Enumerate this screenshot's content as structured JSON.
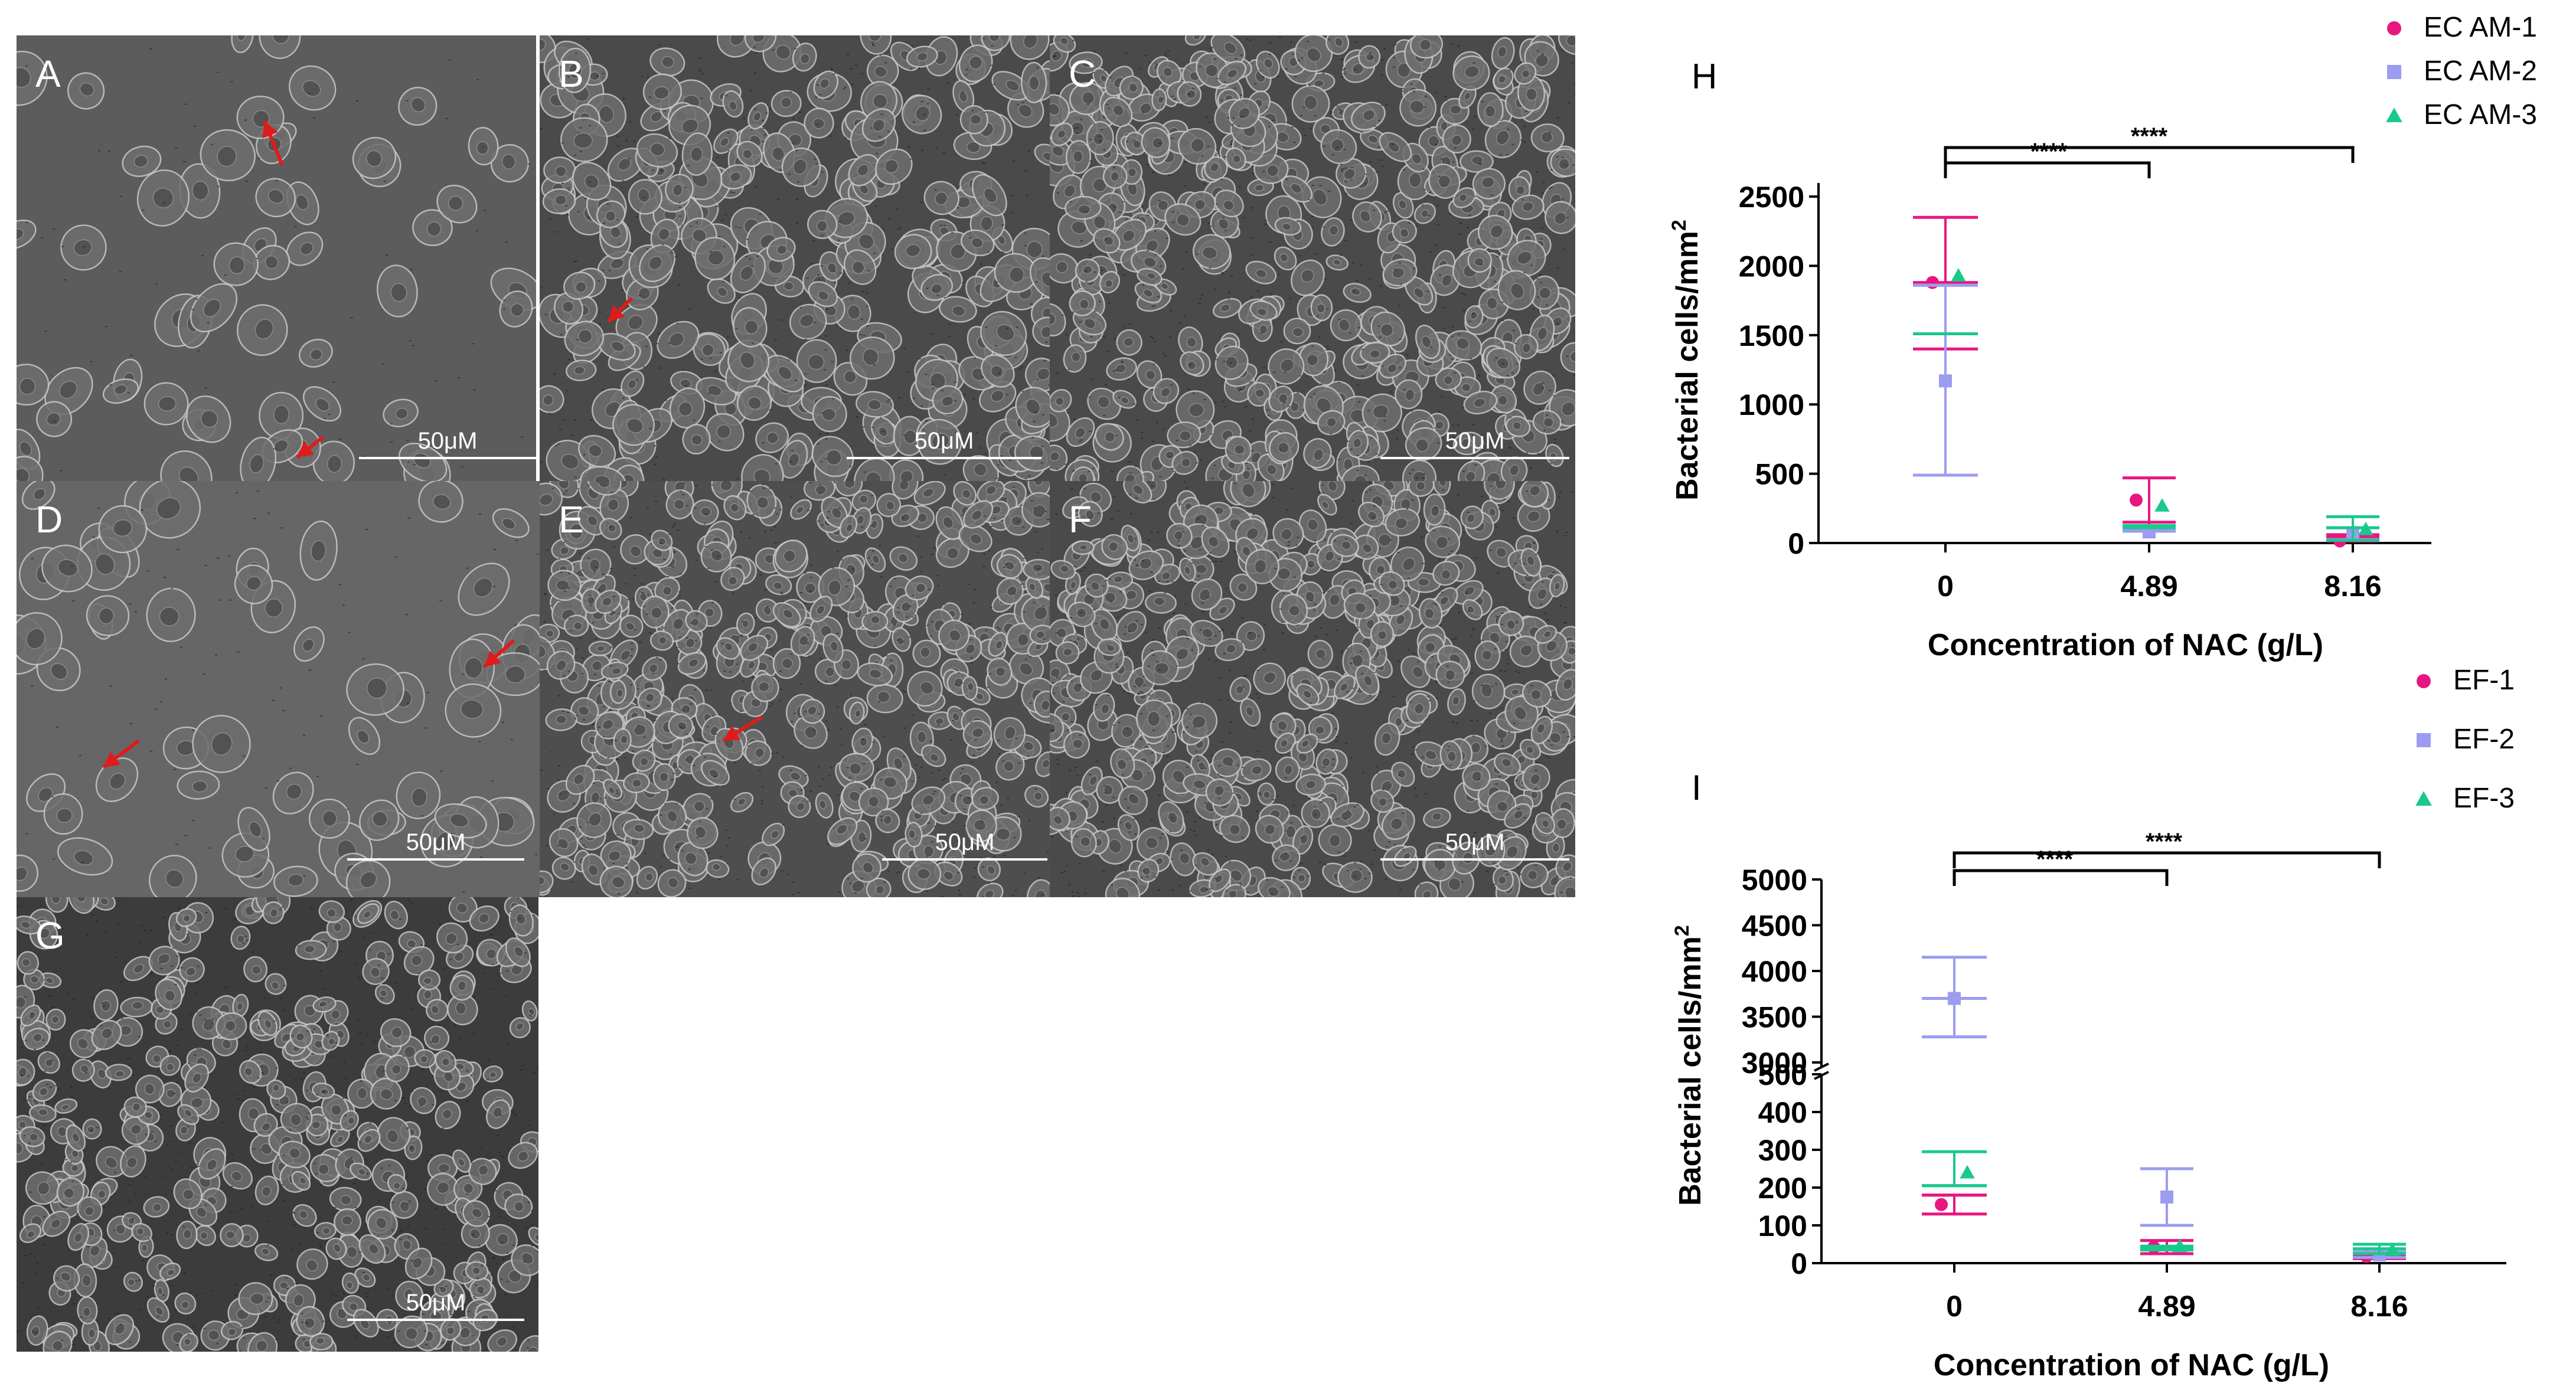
{
  "micrographs": [
    {
      "label": "A",
      "scale_bar": "50μM",
      "cell_density": "sparse-rounded"
    },
    {
      "label": "B",
      "scale_bar": "50μM",
      "cell_density": "dense"
    },
    {
      "label": "C",
      "scale_bar": "50μM",
      "cell_density": "very-dense"
    },
    {
      "label": "D",
      "scale_bar": "50μM",
      "cell_density": "sparse-clustered"
    },
    {
      "label": "E",
      "scale_bar": "50μM",
      "cell_density": "dense"
    },
    {
      "label": "F",
      "scale_bar": "50μM",
      "cell_density": "very-dense"
    },
    {
      "label": "G",
      "scale_bar": "50μM",
      "cell_density": "monolayer"
    }
  ],
  "colors": {
    "series1": "#e8177f",
    "series2": "#9c9cf0",
    "series3": "#19c98c",
    "arrow": "#e01b1b",
    "axis": "#000000"
  },
  "chart_data": [
    {
      "panel_label": "H",
      "type": "scatter",
      "xlabel": "Concentration of NAC (g/L)",
      "ylabel": "Bacterial cells/mm",
      "ylabel_superscript": "2",
      "categories": [
        "0",
        "4.89",
        "8.16"
      ],
      "ylim": [
        0,
        2500
      ],
      "yticks": [
        "0",
        "500",
        "1000",
        "1500",
        "2000",
        "2500"
      ],
      "legend_position": "top-right",
      "series": [
        {
          "name": "EC AM-1",
          "marker": "circle",
          "values": [
            1880,
            310,
            15
          ],
          "mean": [
            1880,
            150,
            40
          ],
          "upper": [
            2350,
            470,
            60
          ],
          "lower": [
            1400,
            120,
            15
          ]
        },
        {
          "name": "EC AM-2",
          "marker": "square",
          "values": [
            1170,
            80,
            60
          ],
          "mean": [
            1860,
            100,
            110
          ],
          "upper": [
            1860,
            100,
            110
          ],
          "lower": [
            490,
            85,
            25
          ]
        },
        {
          "name": "EC AM-3",
          "marker": "triangle",
          "values": [
            1930,
            270,
            100
          ],
          "mean": [
            1510,
            125,
            110
          ],
          "upper": [
            1510,
            125,
            190
          ],
          "lower": [
            1510,
            110,
            20
          ]
        }
      ],
      "significance": [
        {
          "from": "0",
          "to": "4.89",
          "label": "****"
        },
        {
          "from": "0",
          "to": "8.16",
          "label": "****"
        }
      ]
    },
    {
      "panel_label": "I",
      "type": "scatter",
      "xlabel": "Concentration of NAC (g/L)",
      "ylabel": "Bacterial cells/mm",
      "ylabel_superscript": "2",
      "categories": [
        "0",
        "4.89",
        "8.16"
      ],
      "ylim_lower": [
        0,
        500
      ],
      "ylim_upper": [
        3000,
        5000
      ],
      "yticks_lower": [
        "0",
        "100",
        "200",
        "300",
        "400",
        "500"
      ],
      "yticks_upper": [
        "3000",
        "3500",
        "4000",
        "4500",
        "5000"
      ],
      "legend_position": "top-right",
      "series": [
        {
          "name": "EF-1",
          "marker": "circle",
          "values": [
            155,
            42,
            18
          ],
          "mean": [
            180,
            42,
            15
          ],
          "upper": [
            180,
            60,
            20
          ],
          "lower": [
            130,
            25,
            12
          ]
        },
        {
          "name": "EF-2",
          "marker": "square",
          "values": [
            3700,
            175,
            22
          ],
          "mean": [
            3700,
            100,
            25
          ],
          "upper": [
            4150,
            250,
            30
          ],
          "lower": [
            3280,
            100,
            15
          ]
        },
        {
          "name": "EF-3",
          "marker": "triangle",
          "values": [
            240,
            45,
            35
          ],
          "mean": [
            205,
            40,
            38
          ],
          "upper": [
            295,
            45,
            50
          ],
          "lower": [
            205,
            35,
            25
          ]
        }
      ],
      "significance": [
        {
          "from": "0",
          "to": "4.89",
          "label": "****"
        },
        {
          "from": "0",
          "to": "8.16",
          "label": "****"
        }
      ]
    }
  ]
}
